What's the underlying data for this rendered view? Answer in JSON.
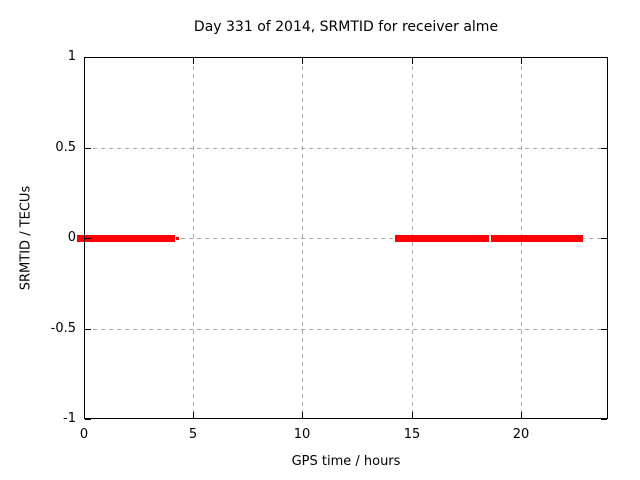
{
  "chart_data": {
    "type": "line",
    "title": "Day 331 of 2014, SRMTID for receiver alme",
    "xlabel": "GPS time / hours",
    "ylabel": "SRMTID / TECUs",
    "xlim": [
      0,
      24
    ],
    "ylim": [
      -1,
      1
    ],
    "x_tick_values": [
      0,
      5,
      10,
      15,
      20
    ],
    "x_tick_labels": [
      "0",
      "5",
      "10",
      "15",
      "20"
    ],
    "y_tick_values": [
      1,
      0.5,
      0,
      -0.5,
      -1
    ],
    "y_tick_labels": [
      "1",
      "0.5",
      "0",
      "-0.5",
      "-1"
    ],
    "grid": {
      "x_values": [
        5,
        10,
        15,
        20
      ],
      "y_values": [
        0.5,
        0,
        -0.5
      ],
      "line_style": "dashed",
      "color": "#a8a8a8"
    },
    "legend": "none",
    "background_color": "#ffffff",
    "border_color": "#000000",
    "series": [
      {
        "name": "SRMTID",
        "color": "#ff0000",
        "style": "thick horizontal segments at y = 0",
        "y_value": 0,
        "segments": [
          {
            "x_start": -0.3,
            "x_end": 4.21,
            "thin": false
          },
          {
            "x_start": 4.21,
            "x_end": 4.35,
            "thin": true
          },
          {
            "x_start": 14.24,
            "x_end": 18.55,
            "thin": false
          },
          {
            "x_start": 18.64,
            "x_end": 22.85,
            "thin": false
          }
        ]
      }
    ]
  }
}
